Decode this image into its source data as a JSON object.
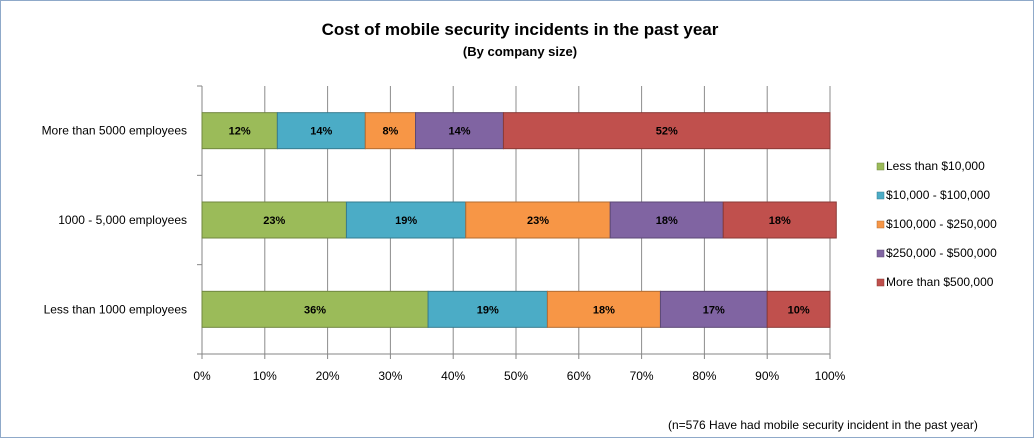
{
  "chart_data": {
    "type": "bar",
    "orientation": "horizontal",
    "stacked": true,
    "title": "Cost of mobile security incidents in the past year",
    "subtitle": "(By company size)",
    "categories": [
      "More than 5000 employees",
      "1000 - 5,000 employees",
      "Less than 1000 employees"
    ],
    "series": [
      {
        "name": "Less than $10,000",
        "color": "#9bbb59",
        "values": [
          12,
          23,
          36
        ]
      },
      {
        "name": "$10,000 - $100,000",
        "color": "#4bacc6",
        "values": [
          14,
          19,
          19
        ]
      },
      {
        "name": "$100,000 - $250,000",
        "color": "#f79646",
        "values": [
          8,
          23,
          18
        ]
      },
      {
        "name": "$250,000 - $500,000",
        "color": "#8064a2",
        "values": [
          14,
          18,
          17
        ]
      },
      {
        "name": "More than $500,000",
        "color": "#c0504d",
        "values": [
          52,
          18,
          10
        ]
      }
    ],
    "xlim": [
      0,
      100
    ],
    "xticks": [
      "0%",
      "10%",
      "20%",
      "30%",
      "40%",
      "50%",
      "60%",
      "70%",
      "80%",
      "90%",
      "100%"
    ],
    "grid": true,
    "legend": "right",
    "footnote": "(n=576 Have had mobile security incident in the past year)"
  }
}
